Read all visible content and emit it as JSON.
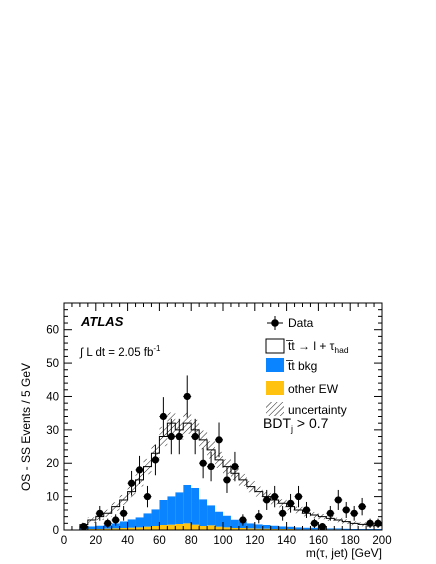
{
  "chart_data": {
    "type": "bar",
    "x_bin_width": 5,
    "x_bin_low_edges": [
      10,
      15,
      20,
      25,
      30,
      35,
      40,
      45,
      50,
      55,
      60,
      65,
      70,
      75,
      80,
      85,
      90,
      95,
      100,
      105,
      110,
      115,
      120,
      125,
      130,
      135,
      140,
      145,
      150,
      155,
      160,
      165,
      170,
      175,
      180,
      185,
      190,
      195
    ],
    "xlim": [
      0,
      200
    ],
    "ylim": [
      0,
      68
    ],
    "xticks": [
      0,
      20,
      40,
      60,
      80,
      100,
      120,
      140,
      160,
      180,
      200
    ],
    "yticks": [
      0,
      10,
      20,
      30,
      40,
      50,
      60
    ],
    "xlabel": "m(τ, jet) [GeV]",
    "ylabel": "OS - SS Events / 5 GeV",
    "stack": [
      {
        "name": "other EW",
        "color": "#ffc20e",
        "values": [
          0.2,
          0.3,
          0.3,
          0.4,
          0.5,
          0.6,
          0.7,
          0.8,
          1.0,
          1.2,
          1.5,
          1.6,
          1.8,
          2.0,
          1.6,
          1.2,
          1.4,
          1.0,
          0.8,
          0.6,
          0.6,
          0.5,
          0.4,
          0.4,
          0.3,
          0.3,
          0.3,
          0.2,
          0.2,
          0.2,
          0.2,
          0.2,
          0.2,
          0.1,
          0.1,
          0.1,
          0.1,
          0.1
        ]
      },
      {
        "name": "t̅t bkg",
        "color": "#0a84ff",
        "values": [
          0.6,
          0.8,
          1.0,
          1.2,
          1.5,
          2.0,
          2.5,
          3.0,
          4.0,
          5.0,
          7.5,
          8.5,
          9.5,
          11.5,
          11.0,
          8.0,
          6.0,
          4.5,
          3.5,
          2.5,
          2.0,
          1.5,
          1.3,
          1.1,
          1.0,
          0.8,
          0.7,
          0.6,
          0.5,
          0.5,
          0.4,
          0.3,
          0.3,
          0.3,
          0.2,
          0.2,
          0.2,
          0.2
        ]
      },
      {
        "name": "t̅t → l + τ_had",
        "color": "#ffffff",
        "values": [
          0.8,
          1.9,
          2.7,
          3.4,
          5.0,
          6.4,
          8.3,
          11.2,
          14.0,
          16.8,
          19.0,
          21.9,
          18.7,
          18.5,
          17.4,
          17.8,
          16.6,
          15.5,
          14.7,
          13.9,
          12.4,
          11.0,
          9.8,
          8.5,
          7.7,
          6.9,
          6.0,
          5.2,
          4.3,
          3.8,
          3.4,
          3.0,
          2.5,
          2.1,
          1.7,
          1.4,
          1.2,
          1.0
        ]
      }
    ],
    "total_mc": [
      1.6,
      3.0,
      4.0,
      5.0,
      7.0,
      9.0,
      11.5,
      15.0,
      19.0,
      23.0,
      28.0,
      32.0,
      30.0,
      32.0,
      30.0,
      27.0,
      24.0,
      21.0,
      19.0,
      17.0,
      15.0,
      13.0,
      11.5,
      10.0,
      9.0,
      8.0,
      7.0,
      6.0,
      5.0,
      4.5,
      4.0,
      3.5,
      3.0,
      2.5,
      2.0,
      1.7,
      1.5,
      1.3
    ],
    "uncertainty": [
      0.6,
      0.8,
      1.0,
      1.1,
      1.3,
      1.5,
      1.7,
      2.0,
      2.3,
      2.6,
      2.9,
      3.2,
      3.0,
      3.2,
      3.0,
      2.8,
      2.6,
      2.4,
      2.2,
      2.0,
      1.8,
      1.7,
      1.5,
      1.4,
      1.3,
      1.2,
      1.1,
      1.0,
      0.9,
      0.9,
      0.8,
      0.8,
      0.7,
      0.7,
      0.6,
      0.6,
      0.6,
      0.5
    ],
    "data_points": {
      "name": "Data",
      "x": [
        12.5,
        22.5,
        27.5,
        32.5,
        37.5,
        42.5,
        47.5,
        52.5,
        57.5,
        62.5,
        67.5,
        72.5,
        77.5,
        82.5,
        87.5,
        92.5,
        97.5,
        102.5,
        107.5,
        112.5,
        122.5,
        127.5,
        132.5,
        137.5,
        142.5,
        147.5,
        152.5,
        157.5,
        162.5,
        167.5,
        172.5,
        177.5,
        182.5,
        187.5,
        192.5,
        197.5
      ],
      "y": [
        1,
        5,
        2,
        3,
        5,
        14,
        18,
        10,
        21,
        34,
        28,
        28,
        40,
        28,
        20,
        19,
        27,
        15,
        19,
        3,
        4,
        9,
        10,
        5,
        8,
        10,
        6,
        2,
        1,
        5,
        9,
        6,
        5,
        7,
        2,
        2
      ],
      "err": [
        1.0,
        2.2,
        1.4,
        1.7,
        2.2,
        3.7,
        4.2,
        3.2,
        4.6,
        5.8,
        5.3,
        5.3,
        6.3,
        5.3,
        4.5,
        4.4,
        5.2,
        3.9,
        4.4,
        1.7,
        2.0,
        3.0,
        3.2,
        2.2,
        2.8,
        3.2,
        2.4,
        1.4,
        1.0,
        2.2,
        3.0,
        2.4,
        2.2,
        2.6,
        1.4,
        1.4
      ]
    },
    "legend": {
      "placement": "top-right",
      "entries": [
        {
          "label": "Data",
          "kind": "marker"
        },
        {
          "label": "t̅t → l + τ",
          "sub": "had",
          "kind": "box",
          "color": "#ffffff"
        },
        {
          "label": "t̅t bkg",
          "kind": "box",
          "color": "#0a84ff"
        },
        {
          "label": "other EW",
          "kind": "box",
          "color": "#ffc20e"
        },
        {
          "label": "uncertainty",
          "kind": "hatch"
        }
      ]
    },
    "annotations": {
      "experiment": "ATLAS",
      "lumi_prefix": "∫ L dt = 2.05 fb",
      "lumi_sup": "-1",
      "cut_main": "BDT",
      "cut_sub": "j",
      "cut_rest": " > 0.7"
    }
  }
}
